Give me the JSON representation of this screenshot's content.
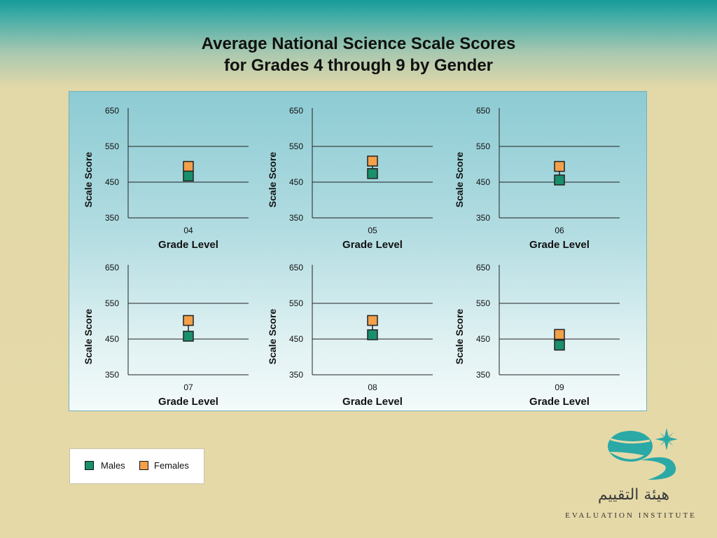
{
  "title_line1": "Average National Science Scale Scores",
  "title_line2": "for Grades 4 through 9 by Gender",
  "colors": {
    "males": "#1a8f6b",
    "females": "#f2a04a"
  },
  "chart_data": [
    {
      "type": "scatter",
      "category": "04",
      "xlabel": "Grade Level",
      "ylabel": "Scale Score",
      "ylim": [
        350,
        650
      ],
      "yticks": [
        350,
        450,
        550,
        650
      ],
      "series": [
        {
          "name": "Males",
          "values": [
            467
          ]
        },
        {
          "name": "Females",
          "values": [
            494
          ]
        }
      ]
    },
    {
      "type": "scatter",
      "category": "05",
      "xlabel": "Grade Level",
      "ylabel": "Scale Score",
      "ylim": [
        350,
        650
      ],
      "yticks": [
        350,
        450,
        550,
        650
      ],
      "series": [
        {
          "name": "Males",
          "values": [
            474
          ]
        },
        {
          "name": "Females",
          "values": [
            509
          ]
        }
      ]
    },
    {
      "type": "scatter",
      "category": "06",
      "xlabel": "Grade Level",
      "ylabel": "Scale Score",
      "ylim": [
        350,
        650
      ],
      "yticks": [
        350,
        450,
        550,
        650
      ],
      "series": [
        {
          "name": "Males",
          "values": [
            456
          ]
        },
        {
          "name": "Females",
          "values": [
            494
          ]
        }
      ]
    },
    {
      "type": "scatter",
      "category": "07",
      "xlabel": "Grade Level",
      "ylabel": "Scale Score",
      "ylim": [
        350,
        650
      ],
      "yticks": [
        350,
        450,
        550,
        650
      ],
      "series": [
        {
          "name": "Males",
          "values": [
            458
          ]
        },
        {
          "name": "Females",
          "values": [
            502
          ]
        }
      ]
    },
    {
      "type": "scatter",
      "category": "08",
      "xlabel": "Grade Level",
      "ylabel": "Scale Score",
      "ylim": [
        350,
        650
      ],
      "yticks": [
        350,
        450,
        550,
        650
      ],
      "series": [
        {
          "name": "Males",
          "values": [
            462
          ]
        },
        {
          "name": "Females",
          "values": [
            502
          ]
        }
      ]
    },
    {
      "type": "scatter",
      "category": "09",
      "xlabel": "Grade Level",
      "ylabel": "Scale Score",
      "ylim": [
        350,
        650
      ],
      "yticks": [
        350,
        450,
        550,
        650
      ],
      "series": [
        {
          "name": "Males",
          "values": [
            433
          ]
        },
        {
          "name": "Females",
          "values": [
            463
          ]
        }
      ]
    }
  ],
  "legend": {
    "males_label": "Males",
    "females_label": "Females"
  },
  "logo": {
    "arabic_name": "هيئة التقييم",
    "org_name": "EVALUATION INSTITUTE"
  }
}
